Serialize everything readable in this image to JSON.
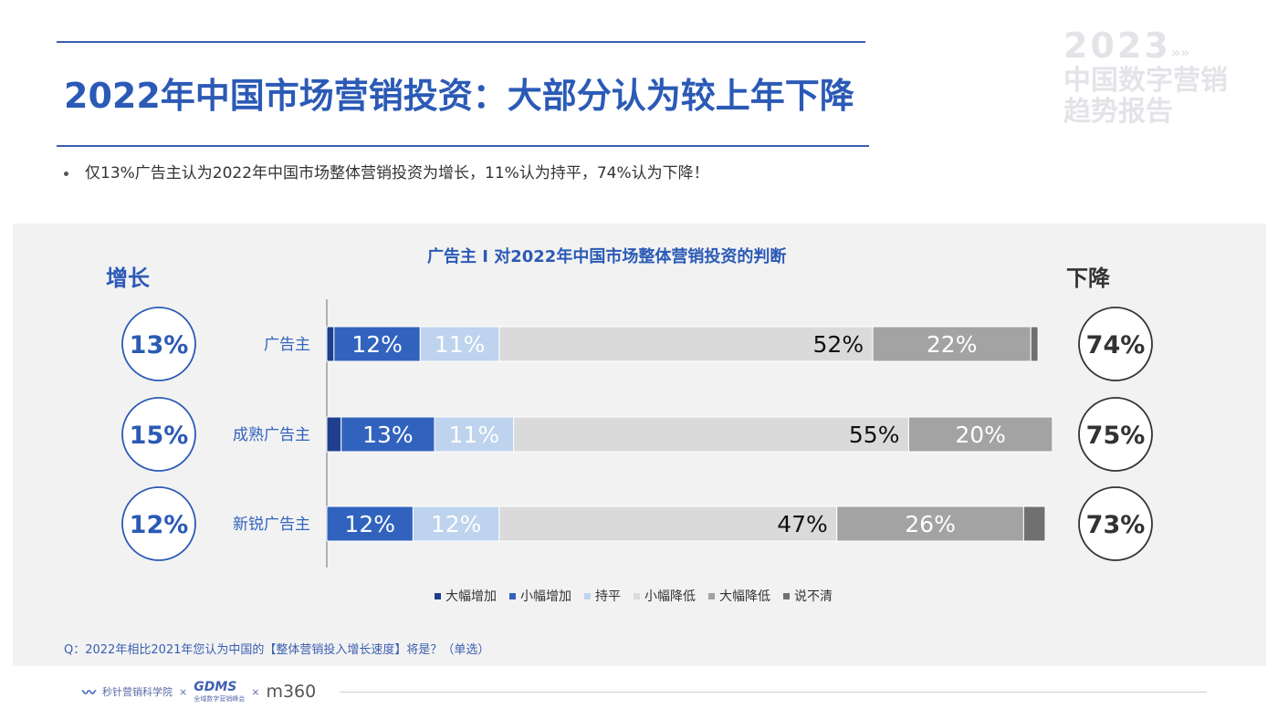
{
  "header": {
    "title": "2022年中国市场营销投资：大部分认为较上年下降",
    "bullet": "仅13%广告主认为2022年中国市场整体营销投资为增长，11%认为持平，74%认为下降！"
  },
  "brand": {
    "year": "2023",
    "year_suffix": "»»",
    "line1": "中国数字营销",
    "line2": "趋势报告"
  },
  "side": {
    "left": "增长",
    "right": "下降"
  },
  "question": "Q：2022年相比2021年您认为中国的【整体营销投入增长速度】将是？（单选）",
  "footer": {
    "org1": "秒针营销科学院",
    "x1": "×",
    "gdms": "GDMS",
    "gdms_sub": "全域数字营销峰会",
    "x2": "×",
    "m360": "m360"
  },
  "chart_data": {
    "type": "bar",
    "orientation": "horizontal",
    "stacked": true,
    "title": "广告主 I 对2022年中国市场整体营销投资的判断",
    "categories": [
      "广告主",
      "成熟广告主",
      "新锐广告主"
    ],
    "series": [
      {
        "name": "大幅增加",
        "values": [
          1,
          2,
          0
        ],
        "color": "#1f3f8e",
        "labeled": false
      },
      {
        "name": "小幅增加",
        "values": [
          12,
          13,
          12
        ],
        "color": "#3163be",
        "labeled": true
      },
      {
        "name": "持平",
        "values": [
          11,
          11,
          12
        ],
        "color": "#bed3ed",
        "labeled": true
      },
      {
        "name": "小幅降低",
        "values": [
          52,
          55,
          47
        ],
        "color": "#dadada",
        "labeled": true
      },
      {
        "name": "大幅降低",
        "values": [
          22,
          20,
          26
        ],
        "color": "#a3a3a3",
        "labeled": true
      },
      {
        "name": "说不清",
        "values": [
          1,
          0,
          3
        ],
        "color": "#707070",
        "labeled": false
      }
    ],
    "increase_totals": [
      "13%",
      "15%",
      "12%"
    ],
    "decrease_totals": [
      "74%",
      "75%",
      "73%"
    ],
    "xlim": [
      0,
      100
    ],
    "legend": "bottom"
  }
}
